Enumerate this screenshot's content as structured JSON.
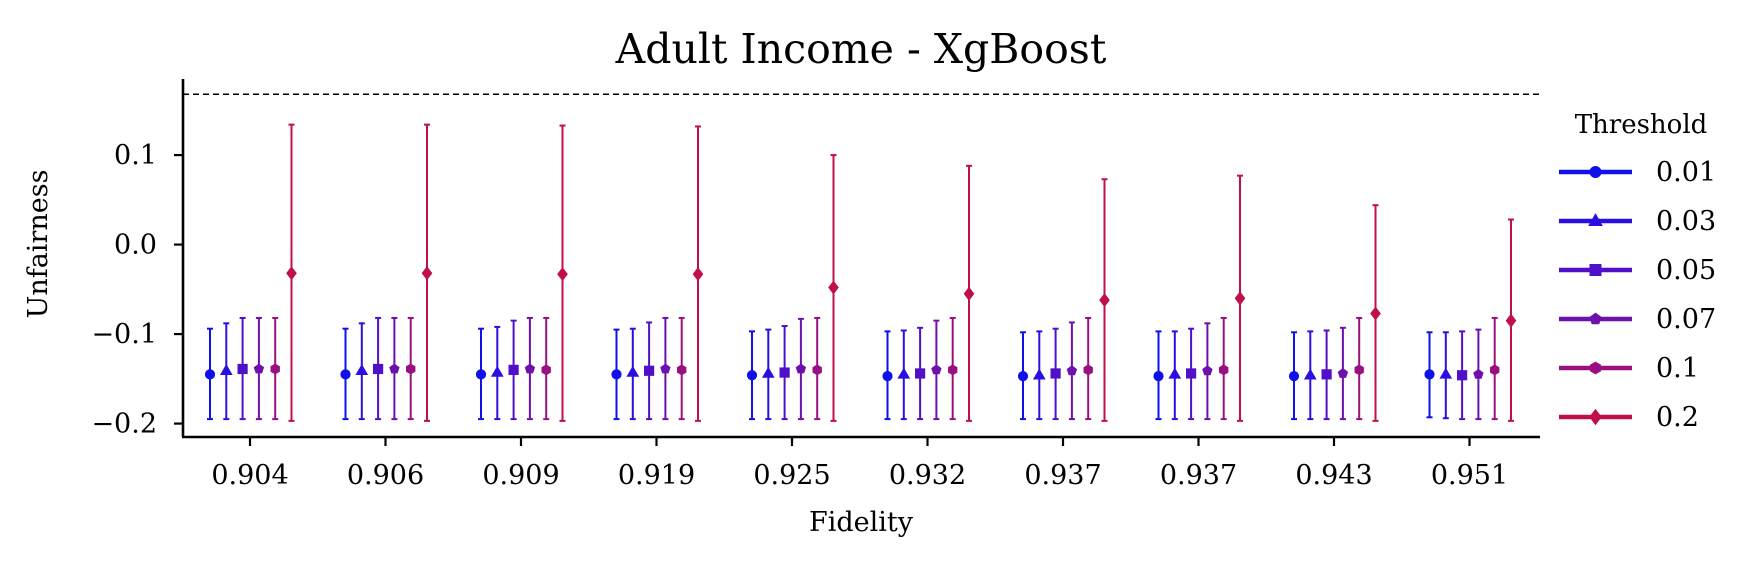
{
  "chart_data": {
    "type": "errorbar",
    "title": "Adult Income - XgBoost",
    "xlabel": "Fidelity",
    "ylabel": "Unfairness",
    "categories": [
      "0.904",
      "0.906",
      "0.909",
      "0.919",
      "0.925",
      "0.932",
      "0.937",
      "0.937",
      "0.943",
      "0.951"
    ],
    "ylim": [
      -0.215,
      0.185
    ],
    "yticks": [
      -0.2,
      -0.1,
      0.0,
      0.1
    ],
    "ytick_labels": [
      "−0.2",
      "−0.1",
      "0.0",
      "0.1"
    ],
    "reference_line": 0.168,
    "legend": {
      "title": "Threshold",
      "placement": "right"
    },
    "series": [
      {
        "name": "0.01",
        "color": "#1010e8",
        "marker": "circle",
        "mean": [
          -0.145,
          -0.145,
          -0.145,
          -0.145,
          -0.146,
          -0.147,
          -0.147,
          -0.147,
          -0.147,
          -0.145
        ],
        "lower": [
          -0.195,
          -0.195,
          -0.195,
          -0.195,
          -0.195,
          -0.195,
          -0.195,
          -0.195,
          -0.195,
          -0.193
        ],
        "upper": [
          -0.094,
          -0.094,
          -0.094,
          -0.095,
          -0.097,
          -0.097,
          -0.098,
          -0.097,
          -0.098,
          -0.098
        ]
      },
      {
        "name": "0.03",
        "color": "#2a10e0",
        "marker": "triangle",
        "mean": [
          -0.141,
          -0.141,
          -0.143,
          -0.143,
          -0.144,
          -0.145,
          -0.146,
          -0.145,
          -0.146,
          -0.145
        ],
        "lower": [
          -0.195,
          -0.195,
          -0.195,
          -0.195,
          -0.195,
          -0.195,
          -0.195,
          -0.195,
          -0.195,
          -0.194
        ],
        "upper": [
          -0.088,
          -0.088,
          -0.092,
          -0.094,
          -0.095,
          -0.096,
          -0.097,
          -0.097,
          -0.097,
          -0.098
        ]
      },
      {
        "name": "0.05",
        "color": "#5010c8",
        "marker": "square",
        "mean": [
          -0.139,
          -0.139,
          -0.14,
          -0.141,
          -0.143,
          -0.144,
          -0.144,
          -0.144,
          -0.145,
          -0.146
        ],
        "lower": [
          -0.195,
          -0.195,
          -0.195,
          -0.195,
          -0.195,
          -0.195,
          -0.195,
          -0.195,
          -0.195,
          -0.195
        ],
        "upper": [
          -0.082,
          -0.082,
          -0.085,
          -0.087,
          -0.091,
          -0.093,
          -0.094,
          -0.094,
          -0.096,
          -0.097
        ]
      },
      {
        "name": "0.07",
        "color": "#6e10ac",
        "marker": "pentagon",
        "mean": [
          -0.139,
          -0.139,
          -0.139,
          -0.139,
          -0.139,
          -0.14,
          -0.141,
          -0.141,
          -0.144,
          -0.145
        ],
        "lower": [
          -0.195,
          -0.195,
          -0.195,
          -0.195,
          -0.195,
          -0.195,
          -0.195,
          -0.195,
          -0.195,
          -0.195
        ],
        "upper": [
          -0.082,
          -0.082,
          -0.082,
          -0.082,
          -0.083,
          -0.085,
          -0.087,
          -0.088,
          -0.093,
          -0.095
        ]
      },
      {
        "name": "0.1",
        "color": "#9a1080",
        "marker": "hexagon",
        "mean": [
          -0.139,
          -0.139,
          -0.14,
          -0.14,
          -0.14,
          -0.14,
          -0.14,
          -0.14,
          -0.14,
          -0.14
        ],
        "lower": [
          -0.195,
          -0.195,
          -0.195,
          -0.195,
          -0.195,
          -0.195,
          -0.195,
          -0.195,
          -0.195,
          -0.195
        ],
        "upper": [
          -0.082,
          -0.082,
          -0.082,
          -0.082,
          -0.082,
          -0.082,
          -0.082,
          -0.082,
          -0.082,
          -0.082
        ]
      },
      {
        "name": "0.2",
        "color": "#c0104c",
        "marker": "diamond",
        "mean": [
          -0.032,
          -0.032,
          -0.033,
          -0.033,
          -0.048,
          -0.055,
          -0.062,
          -0.06,
          -0.077,
          -0.085
        ],
        "lower": [
          -0.197,
          -0.197,
          -0.197,
          -0.197,
          -0.197,
          -0.197,
          -0.197,
          -0.197,
          -0.197,
          -0.197
        ],
        "upper": [
          0.134,
          0.134,
          0.133,
          0.132,
          0.1,
          0.088,
          0.073,
          0.077,
          0.044,
          0.028
        ]
      }
    ]
  }
}
